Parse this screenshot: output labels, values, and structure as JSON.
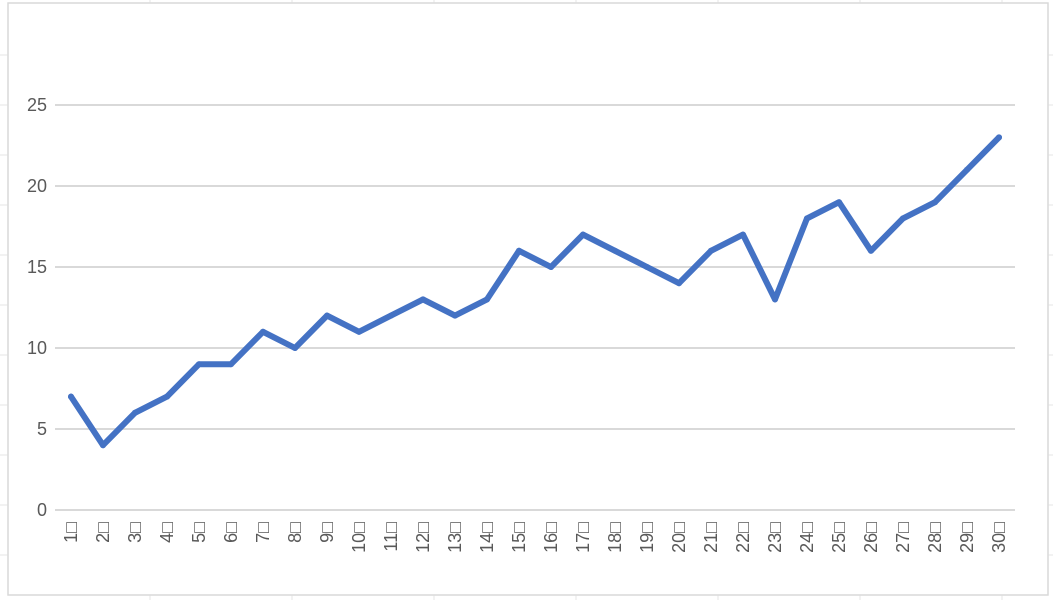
{
  "chart_data": {
    "type": "line",
    "title": "",
    "xlabel": "",
    "ylabel": "",
    "categories": [
      "1□",
      "2□",
      "3□",
      "4□",
      "5□",
      "6□",
      "7□",
      "8□",
      "9□",
      "10□",
      "11□",
      "12□",
      "13□",
      "14□",
      "15□",
      "16□",
      "17□",
      "18□",
      "19□",
      "20□",
      "21□",
      "22□",
      "23□",
      "24□",
      "25□",
      "26□",
      "27□",
      "28□",
      "29□",
      "30□"
    ],
    "series": [
      {
        "values": [
          7,
          4,
          6,
          7,
          9,
          9,
          11,
          10,
          12,
          11,
          12,
          13,
          12,
          13,
          16,
          15,
          17,
          16,
          15,
          14,
          16,
          17,
          13,
          18,
          19,
          16,
          18,
          19,
          21,
          23
        ],
        "color": "#4472C4"
      }
    ],
    "ylim": [
      0,
      25
    ],
    "yticks": [
      0,
      5,
      10,
      15,
      20,
      25
    ],
    "ytick_labels": [
      "0",
      "5",
      "10",
      "15",
      "20",
      "25"
    ],
    "grid": true,
    "legend": "none",
    "gridline_color": "#d9d9d9",
    "axis_text_color": "#595959",
    "sheet_grid_color": "#e6e6e6"
  }
}
